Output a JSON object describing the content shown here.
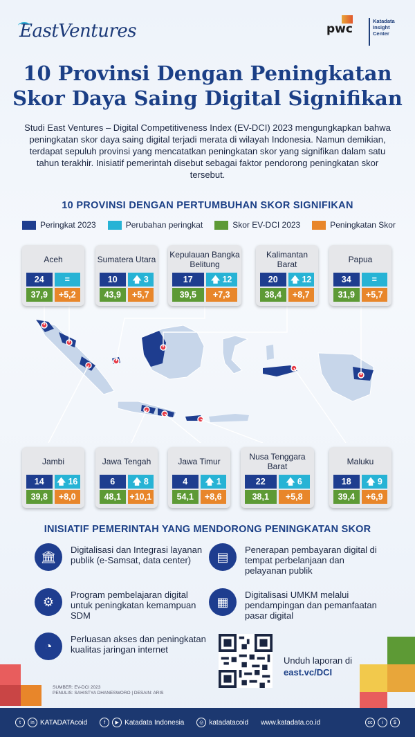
{
  "header": {
    "ev_logo": "EastVentures",
    "pwc_logo": "pwc",
    "kic_logo": [
      "Katadata",
      "Insight",
      "Center"
    ]
  },
  "title": [
    "10 Provinsi Dengan Peningkatan",
    "Skor Daya Saing Digital Signifikan"
  ],
  "intro": "Studi East Ventures – Digital Competitiveness Index (EV-DCI) 2023 mengungkapkan bahwa peningkatan skor daya saing digital terjadi merata di wilayah Indonesia. Namun demikian, terdapat sepuluh provinsi yang mencatatkan peningkatan skor yang signifikan dalam satu tahun terakhir. Inisiatif pemerintah disebut sebagai faktor pendorong peningkatan skor tersebut.",
  "subhead": "10 PROVINSI DENGAN PERTUMBUHAN SKOR SIGNIFIKAN",
  "legend": [
    {
      "label": "Peringkat 2023",
      "color": "#1e3d8f"
    },
    {
      "label": "Perubahan peringkat",
      "color": "#27b3d5"
    },
    {
      "label": "Skor EV-DCI 2023",
      "color": "#5d9a35"
    },
    {
      "label": "Peningkatan Skor",
      "color": "#e8862a"
    }
  ],
  "provinces": [
    {
      "name": "Aceh",
      "rank": "24",
      "change": "=",
      "score": "37,9",
      "inc": "+5,2"
    },
    {
      "name": "Sumatera Utara",
      "rank": "10",
      "change": "🡅 3",
      "score": "43,9",
      "inc": "+5,7"
    },
    {
      "name": "Kepulauan Bangka Belitung",
      "rank": "17",
      "change": "🡅 12",
      "score": "39,5",
      "inc": "+7,3"
    },
    {
      "name": "Kalimantan Barat",
      "rank": "20",
      "change": "🡅 12",
      "score": "38,4",
      "inc": "+8,7"
    },
    {
      "name": "Papua",
      "rank": "34",
      "change": "=",
      "score": "31,9",
      "inc": "+5,7"
    },
    {
      "name": "Jambi",
      "rank": "14",
      "change": "🡅 16",
      "score": "39,8",
      "inc": "+8,0"
    },
    {
      "name": "Jawa Tengah",
      "rank": "6",
      "change": "🡅 8",
      "score": "48,1",
      "inc": "+10,1"
    },
    {
      "name": "Jawa Timur",
      "rank": "4",
      "change": "🡅 1",
      "score": "54,1",
      "inc": "+8,6"
    },
    {
      "name": "Nusa Tenggara Barat",
      "rank": "22",
      "change": "🡅 6",
      "score": "38,1",
      "inc": "+5,8"
    },
    {
      "name": "Maluku",
      "rank": "18",
      "change": "🡅 9",
      "score": "39,4",
      "inc": "+6,9"
    }
  ],
  "initiatives_title": "INISIATIF PEMERINTAH YANG MENDORONG PENINGKATAN SKOR",
  "initiatives": [
    {
      "icon": "government-building-icon",
      "text": "Digitalisasi dan Integrasi layanan publik (e-Samsat, data center)"
    },
    {
      "icon": "payment-terminal-icon",
      "text": "Penerapan pembayaran digital di tempat perbelanjaan dan pelayanan publik"
    },
    {
      "icon": "learning-icon",
      "text": "Program pembelajaran digital untuk peningkatan kemampuan SDM"
    },
    {
      "icon": "shop-icon",
      "text": "Digitalisasi UMKM melalui pendampingan dan pemanfaatan pasar digital"
    },
    {
      "icon": "wifi-icon",
      "text": "Perluasan akses dan peningkatan kualitas jaringan internet"
    }
  ],
  "download": {
    "label": "Unduh laporan di",
    "link": "east.vc/DCI"
  },
  "source": {
    "line1": "SUMBER: EV-DCI 2023",
    "line2": "PENULIS: SAHISTYA DHANESWORO | DESAIN: ARIS"
  },
  "footer": {
    "twitter_ig": "KATADATAcoid",
    "facebook_yt": "Katadata Indonesia",
    "instagram": "katadatacoid",
    "web": "www.katadata.co.id"
  }
}
